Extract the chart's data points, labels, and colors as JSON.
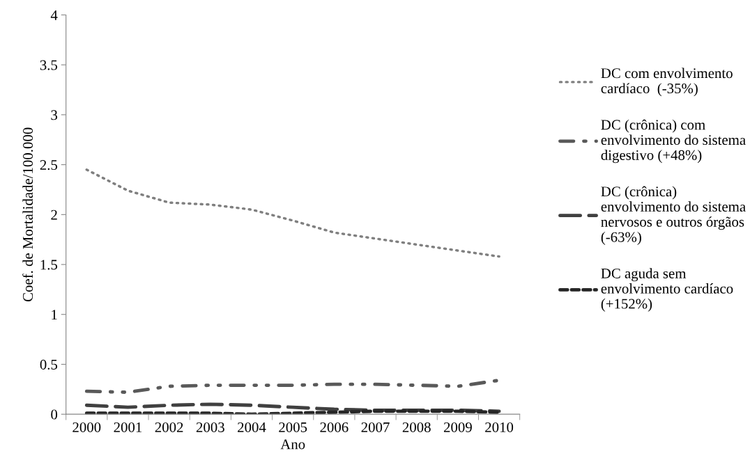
{
  "chart_data": {
    "type": "line",
    "xlabel": "Ano",
    "ylabel": "Coef. de Mortalidade/100.000",
    "categories": [
      "2000",
      "2001",
      "2002",
      "2003",
      "2004",
      "2005",
      "2006",
      "2007",
      "2008",
      "2009",
      "2010"
    ],
    "series": [
      {
        "name": "DC com envolvimento cardíaco  (-35%)",
        "color": "#7f7f7f",
        "line_style": "dotted",
        "values": [
          2.45,
          2.24,
          2.12,
          2.1,
          2.05,
          1.94,
          1.82,
          1.76,
          1.7,
          1.64,
          1.58
        ]
      },
      {
        "name": "DC (crônica) com envolvimento do sistema digestivo (+48%)",
        "color": "#595959",
        "line_style": "dashdot",
        "values": [
          0.23,
          0.22,
          0.28,
          0.29,
          0.29,
          0.29,
          0.3,
          0.3,
          0.29,
          0.28,
          0.34
        ]
      },
      {
        "name": "DC (crônica) envolvimento do sistema nervosos e outros órgãos (-63%)",
        "color": "#404040",
        "line_style": "longdash",
        "values": [
          0.09,
          0.07,
          0.09,
          0.1,
          0.09,
          0.07,
          0.05,
          0.04,
          0.04,
          0.04,
          0.03
        ]
      },
      {
        "name": "DC aguda sem envolvimento cardíaco (+152%)",
        "color": "#262626",
        "line_style": "dashed",
        "values": [
          0.01,
          0.01,
          0.01,
          0.01,
          0.0,
          0.01,
          0.02,
          0.03,
          0.03,
          0.03,
          0.02
        ]
      }
    ],
    "ylim": [
      0,
      4
    ],
    "yticks": [
      0,
      0.5,
      1,
      1.5,
      2,
      2.5,
      3,
      3.5,
      4
    ],
    "grid": false,
    "legend": "right"
  }
}
